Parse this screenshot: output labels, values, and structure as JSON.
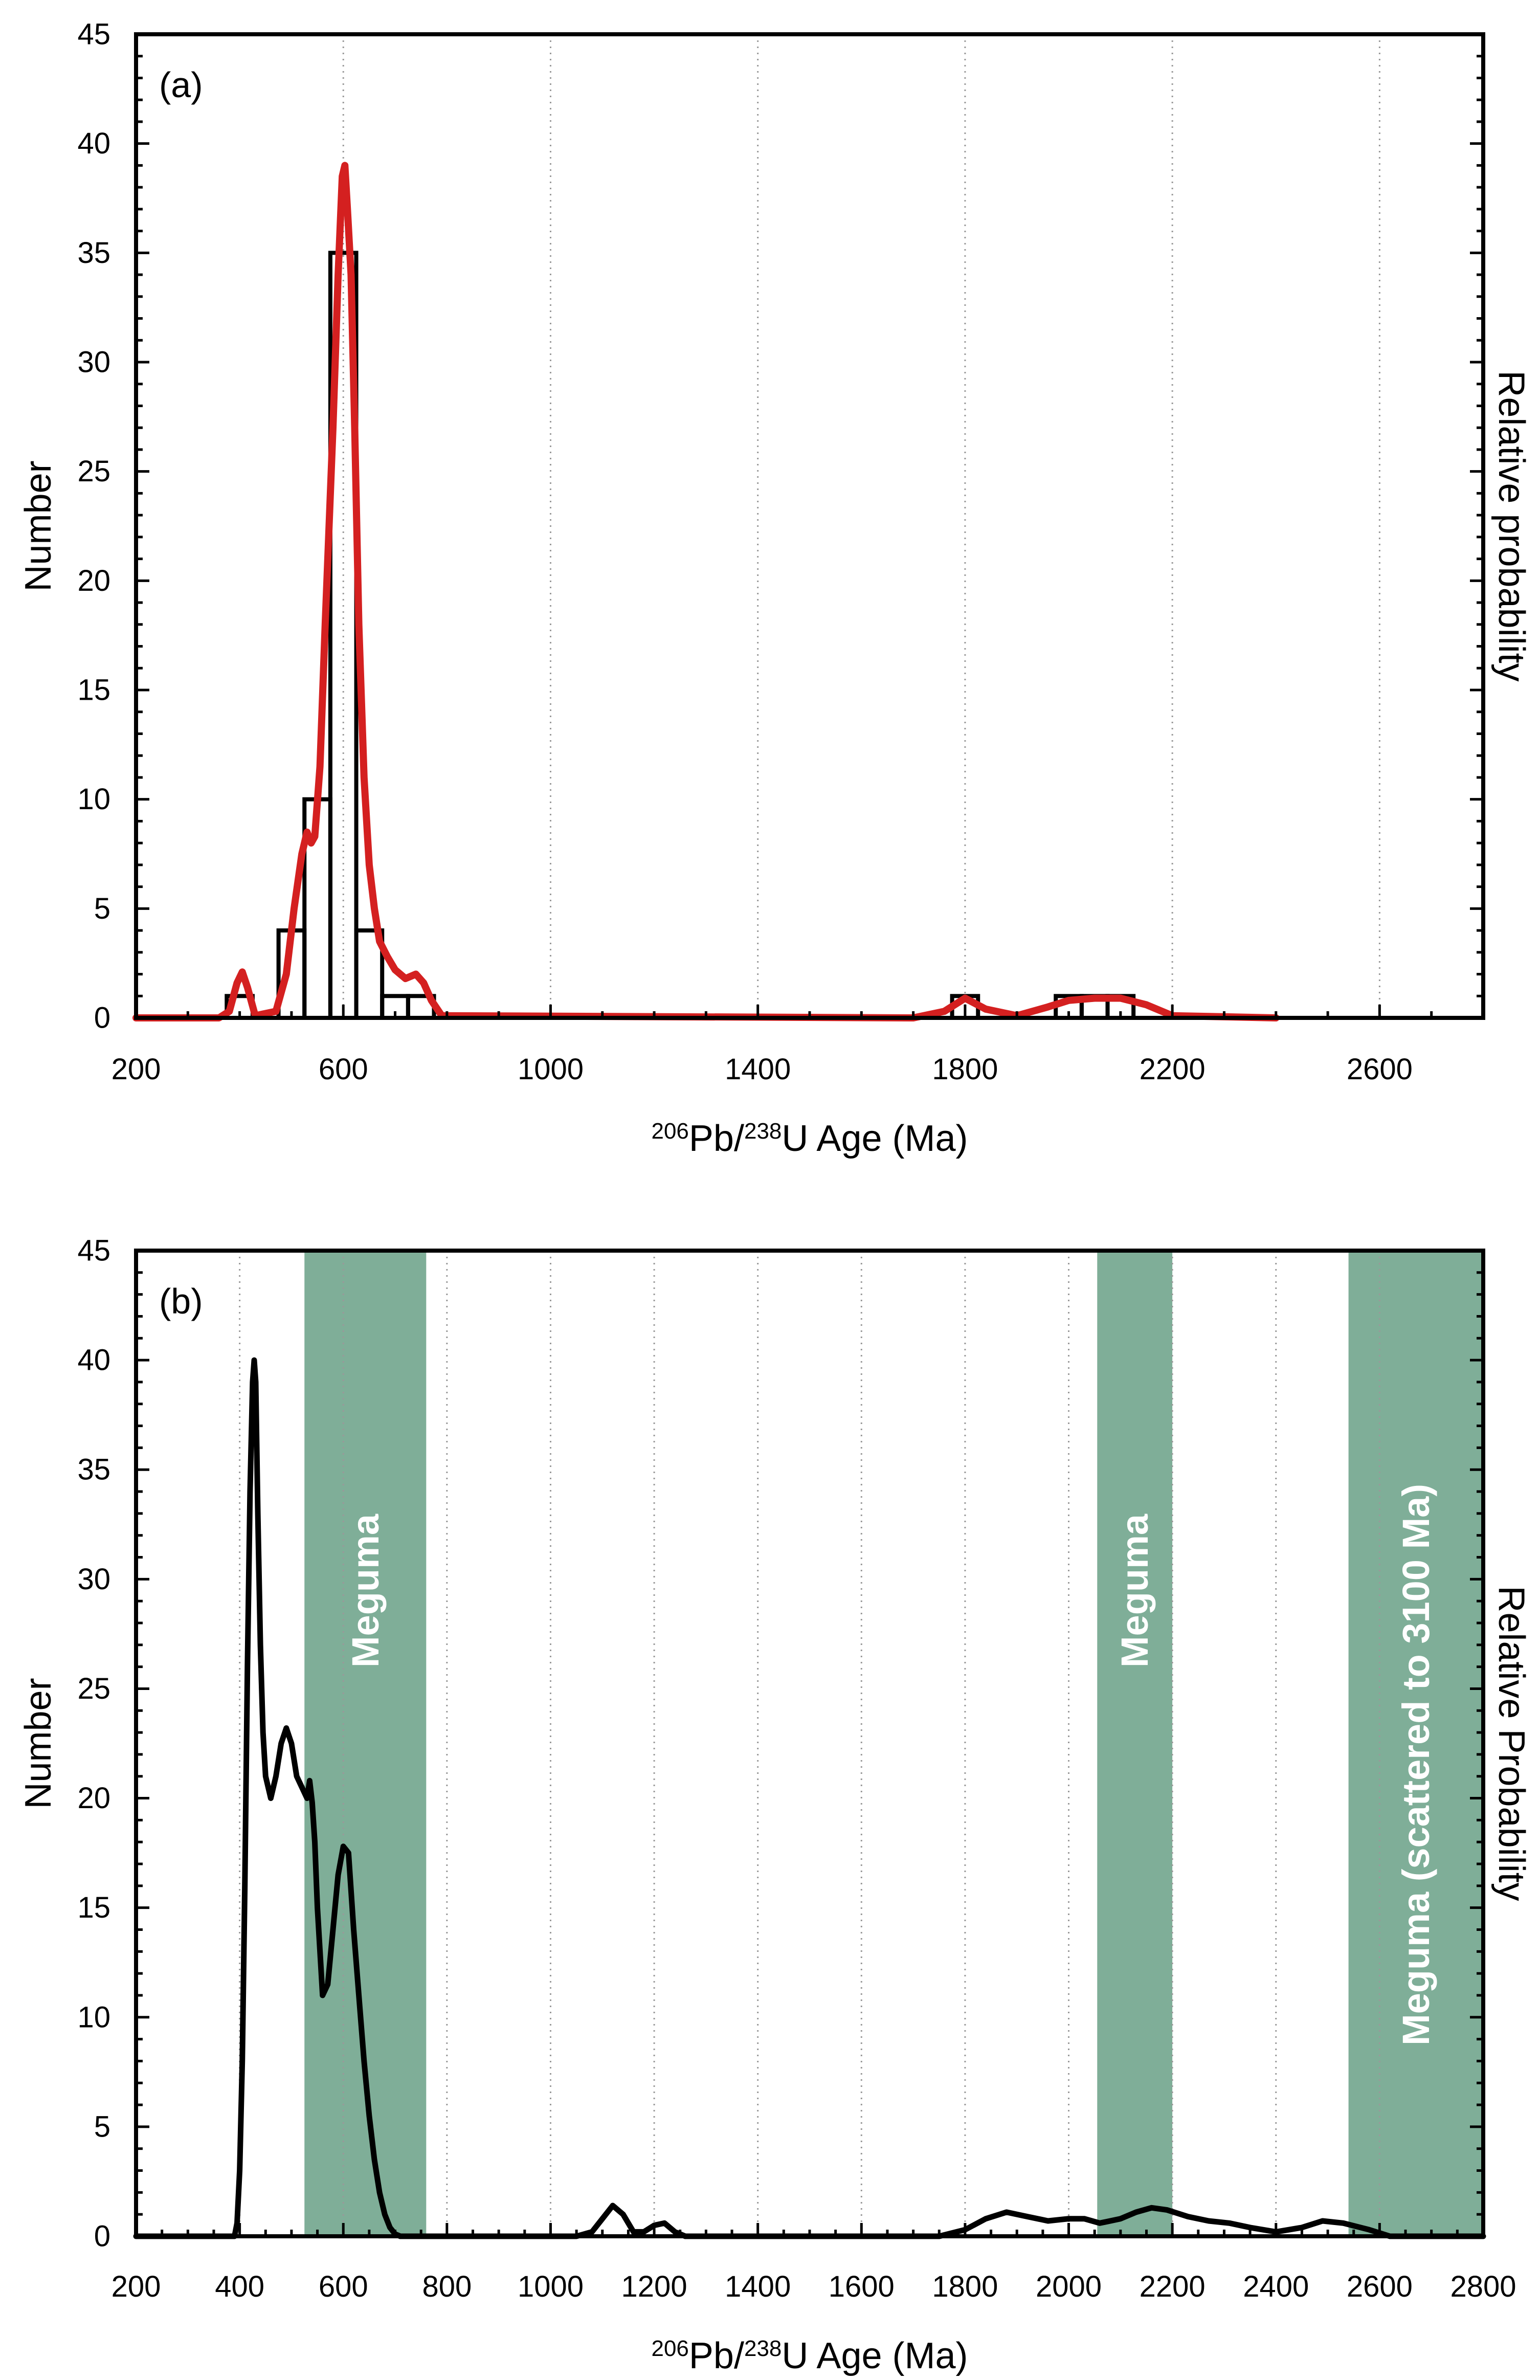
{
  "chart_data": [
    {
      "panel": "(a)",
      "type": "bar",
      "xlabel": {
        "sup1": "206",
        "mid": "Pb/",
        "sup2": "238",
        "rest": "U Age (Ma)"
      },
      "ylabel": "Number",
      "y2label": "Relative probability",
      "xlim": [
        200,
        2800
      ],
      "ylim": [
        0,
        45
      ],
      "xticks": [
        200,
        600,
        1000,
        1400,
        1800,
        2200,
        2600
      ],
      "xtick_labels": [
        "200",
        "600",
        "1000",
        "1400",
        "1800",
        "2200",
        "2600"
      ],
      "yticks": [
        0,
        5,
        10,
        15,
        20,
        25,
        30,
        35,
        40,
        45
      ],
      "ytick_labels": [
        "0",
        "5",
        "10",
        "15",
        "20",
        "25",
        "30",
        "35",
        "40",
        "45"
      ],
      "gridlines_x": [
        600,
        1000,
        1400,
        1800,
        2200,
        2600
      ],
      "histogram": {
        "bin_width": 50,
        "bins": [
          {
            "start": 375,
            "count": 1
          },
          {
            "start": 475,
            "count": 4
          },
          {
            "start": 525,
            "count": 10
          },
          {
            "start": 575,
            "count": 35
          },
          {
            "start": 625,
            "count": 4
          },
          {
            "start": 675,
            "count": 1
          },
          {
            "start": 725,
            "count": 1
          },
          {
            "start": 1775,
            "count": 1
          },
          {
            "start": 1975,
            "count": 1
          },
          {
            "start": 2025,
            "count": 1
          },
          {
            "start": 2075,
            "count": 1
          }
        ]
      },
      "probability_curve": {
        "name": "Relative probability",
        "color": "#d42020",
        "x": [
          200,
          360,
          380,
          395,
          405,
          415,
          430,
          470,
          490,
          505,
          520,
          530,
          538,
          545,
          555,
          565,
          580,
          590,
          598,
          603,
          608,
          615,
          622,
          630,
          640,
          650,
          660,
          670,
          685,
          700,
          720,
          740,
          755,
          770,
          790,
          1700,
          1760,
          1800,
          1840,
          1900,
          1960,
          2000,
          2050,
          2100,
          2150,
          2200,
          2400
        ],
        "y": [
          0,
          0,
          0.3,
          1.6,
          2.1,
          1.4,
          0.1,
          0.3,
          2.0,
          5.0,
          7.5,
          8.5,
          8.0,
          8.3,
          11.5,
          18.0,
          27.0,
          34.0,
          38.5,
          39.0,
          37.0,
          34.0,
          27.0,
          18.0,
          11.0,
          7.0,
          5.0,
          3.5,
          2.8,
          2.2,
          1.8,
          2.0,
          1.6,
          0.8,
          0.1,
          0,
          0.3,
          0.9,
          0.4,
          0.1,
          0.5,
          0.8,
          0.9,
          0.9,
          0.6,
          0.1,
          0
        ]
      }
    },
    {
      "panel": "(b)",
      "type": "line",
      "xlabel": {
        "sup1": "206",
        "mid": "Pb/",
        "sup2": "238",
        "rest": "U Age (Ma)"
      },
      "ylabel": "Number",
      "y2label": "Relative Probability",
      "xlim": [
        200,
        2800
      ],
      "ylim": [
        0,
        45
      ],
      "xticks": [
        200,
        400,
        600,
        800,
        1000,
        1200,
        1400,
        1600,
        1800,
        2000,
        2200,
        2400,
        2600,
        2800
      ],
      "xtick_labels": [
        "200",
        "400",
        "600",
        "800",
        "1000",
        "1200",
        "1400",
        "1600",
        "1800",
        "2000",
        "2200",
        "2400",
        "2600",
        "2800"
      ],
      "yticks": [
        0,
        5,
        10,
        15,
        20,
        25,
        30,
        35,
        40,
        45
      ],
      "ytick_labels": [
        "0",
        "5",
        "10",
        "15",
        "20",
        "25",
        "30",
        "35",
        "40",
        "45"
      ],
      "gridlines_x": [
        400,
        600,
        800,
        1000,
        1200,
        1400,
        1600,
        1800,
        2000,
        2200,
        2400,
        2600
      ],
      "bands": [
        {
          "from": 525,
          "to": 760,
          "label": "Meguma",
          "color": "#7fae98"
        },
        {
          "from": 2055,
          "to": 2200,
          "label": "Meguma",
          "color": "#7fae98"
        },
        {
          "from": 2540,
          "to": 2800,
          "label": "Meguma (scattered to 3100 Ma)",
          "color": "#7fae98"
        }
      ],
      "series": [
        {
          "name": "Relative Probability",
          "color": "#000000",
          "x": [
            200,
            390,
            395,
            400,
            405,
            410,
            415,
            420,
            425,
            428,
            431,
            435,
            440,
            445,
            450,
            460,
            470,
            480,
            490,
            500,
            510,
            520,
            530,
            535,
            540,
            545,
            550,
            560,
            570,
            580,
            590,
            600,
            610,
            620,
            630,
            640,
            650,
            660,
            670,
            680,
            690,
            700,
            710,
            720,
            1050,
            1080,
            1100,
            1120,
            1140,
            1160,
            1180,
            1200,
            1220,
            1240,
            1260,
            1750,
            1800,
            1840,
            1880,
            1920,
            1960,
            2000,
            2030,
            2060,
            2100,
            2130,
            2160,
            2190,
            2230,
            2270,
            2310,
            2350,
            2400,
            2450,
            2490,
            2530,
            2580,
            2620,
            2800
          ],
          "y": [
            0,
            0,
            0.6,
            3,
            8,
            16,
            26,
            34,
            39,
            40,
            39,
            33,
            27,
            23,
            21,
            20,
            21,
            22.5,
            23.2,
            22.5,
            21,
            20.5,
            20,
            20.8,
            19.8,
            18,
            15,
            11,
            11.5,
            14,
            16.5,
            17.8,
            17.5,
            14,
            11,
            8,
            5.5,
            3.5,
            2,
            1,
            0.4,
            0.1,
            0,
            0,
            0,
            0.2,
            0.8,
            1.4,
            1.0,
            0.2,
            0.2,
            0.5,
            0.6,
            0.2,
            0,
            0,
            0.3,
            0.8,
            1.1,
            0.9,
            0.7,
            0.8,
            0.8,
            0.6,
            0.8,
            1.1,
            1.3,
            1.2,
            0.9,
            0.7,
            0.6,
            0.4,
            0.2,
            0.4,
            0.7,
            0.6,
            0.3,
            0,
            0
          ]
        }
      ]
    }
  ]
}
